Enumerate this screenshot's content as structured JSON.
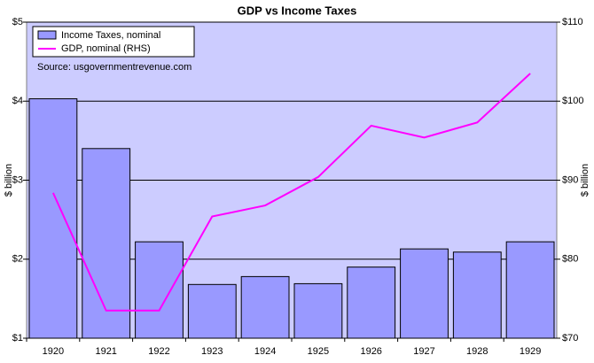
{
  "chart_data": {
    "type": "bar_line",
    "title": "GDP vs Income Taxes",
    "annotation": "Source: usgovernmentrevenue.com",
    "y_label": "$ billion",
    "y2_label": "$ billion",
    "categories": [
      "1920",
      "1921",
      "1922",
      "1923",
      "1924",
      "1925",
      "1926",
      "1927",
      "1928",
      "1929"
    ],
    "series": [
      {
        "name": "Income Taxes, nominal",
        "color": "#9999ff",
        "axis": "y",
        "kind": "bar",
        "values": [
          4.03,
          3.4,
          2.22,
          1.68,
          1.78,
          1.69,
          1.9,
          2.13,
          2.09,
          2.22
        ]
      },
      {
        "name": "GDP, nominal (RHS)",
        "color": "#ff00ff",
        "axis": "y2",
        "kind": "line",
        "values": [
          88.4,
          73.5,
          73.5,
          85.4,
          86.8,
          90.4,
          96.9,
          95.4,
          97.3,
          103.5
        ]
      }
    ],
    "ylim": [
      1,
      5
    ],
    "yticks": [
      {
        "value": 1,
        "label": "$1"
      },
      {
        "value": 2,
        "label": "$2"
      },
      {
        "value": 3,
        "label": "$3"
      },
      {
        "value": 4,
        "label": "$4"
      },
      {
        "value": 5,
        "label": "$5"
      }
    ],
    "y2lim": [
      70,
      110
    ],
    "y2ticks": [
      {
        "value": 70,
        "label": "$70"
      },
      {
        "value": 80,
        "label": "$80"
      },
      {
        "value": 90,
        "label": "$90"
      },
      {
        "value": 100,
        "label": "$100"
      },
      {
        "value": 110,
        "label": "$110"
      }
    ],
    "grid": true,
    "legend": "upper left",
    "plot_background": "#ccccff"
  }
}
